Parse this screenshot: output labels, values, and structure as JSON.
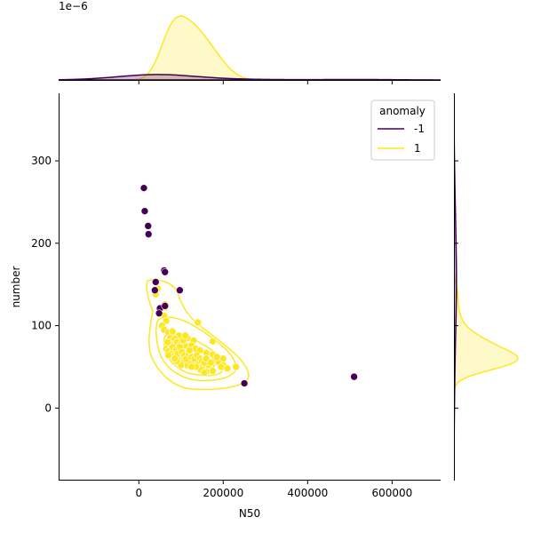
{
  "chart_data": {
    "type": "scatter",
    "title": "",
    "xlabel": "N50",
    "ylabel": "number",
    "xlim": [
      -190000,
      715000
    ],
    "ylim": [
      -88,
      382
    ],
    "x_ticks": [
      0,
      200000,
      400000,
      600000
    ],
    "x_tick_labels": [
      "0",
      "200000",
      "400000",
      "600000"
    ],
    "y_ticks": [
      0,
      100,
      200,
      300
    ],
    "y_tick_labels": [
      "0",
      "100",
      "200",
      "300"
    ],
    "top_marginal_offset_label": "1e−6",
    "legend": {
      "title": "anomaly",
      "placement": "top-right",
      "entries": [
        {
          "label": "-1",
          "color": "#440154"
        },
        {
          "label": "1",
          "color": "#fde725"
        }
      ]
    },
    "grid": false,
    "series": [
      {
        "name": "-1",
        "color": "#440154",
        "points": [
          [
            12000,
            267
          ],
          [
            14000,
            239
          ],
          [
            22000,
            221
          ],
          [
            23000,
            211
          ],
          [
            60000,
            167
          ],
          [
            62000,
            165
          ],
          [
            40000,
            153
          ],
          [
            38000,
            143
          ],
          [
            97000,
            143
          ],
          [
            50000,
            121
          ],
          [
            48000,
            115
          ],
          [
            62000,
            124
          ],
          [
            250000,
            30
          ],
          [
            510000,
            38
          ]
        ]
      },
      {
        "name": "1",
        "color": "#fde725",
        "points": [
          [
            45000,
            145
          ],
          [
            40000,
            138
          ],
          [
            62000,
            126
          ],
          [
            62000,
            122
          ],
          [
            60000,
            112
          ],
          [
            65000,
            106
          ],
          [
            140000,
            104
          ],
          [
            55000,
            100
          ],
          [
            60000,
            95
          ],
          [
            70000,
            92
          ],
          [
            80000,
            93
          ],
          [
            95000,
            88
          ],
          [
            115000,
            85
          ],
          [
            130000,
            82
          ],
          [
            175000,
            81
          ],
          [
            75000,
            85
          ],
          [
            85000,
            84
          ],
          [
            90000,
            80
          ],
          [
            100000,
            78
          ],
          [
            110000,
            76
          ],
          [
            125000,
            76
          ],
          [
            135000,
            72
          ],
          [
            145000,
            70
          ],
          [
            160000,
            67
          ],
          [
            175000,
            65
          ],
          [
            65000,
            72
          ],
          [
            70000,
            69
          ],
          [
            80000,
            67
          ],
          [
            85000,
            64
          ],
          [
            90000,
            62
          ],
          [
            95000,
            60
          ],
          [
            100000,
            57
          ],
          [
            105000,
            55
          ],
          [
            115000,
            52
          ],
          [
            120000,
            58
          ],
          [
            130000,
            54
          ],
          [
            140000,
            56
          ],
          [
            150000,
            50
          ],
          [
            165000,
            52
          ],
          [
            180000,
            58
          ],
          [
            190000,
            55
          ],
          [
            200000,
            60
          ],
          [
            200000,
            52
          ],
          [
            210000,
            48
          ],
          [
            230000,
            50
          ],
          [
            75000,
            77
          ],
          [
            80000,
            74
          ],
          [
            88000,
            70
          ],
          [
            92000,
            66
          ],
          [
            97000,
            74
          ],
          [
            102000,
            68
          ],
          [
            108000,
            64
          ],
          [
            112000,
            60
          ],
          [
            118000,
            66
          ],
          [
            125000,
            62
          ],
          [
            132000,
            60
          ],
          [
            138000,
            64
          ],
          [
            145000,
            60
          ],
          [
            150000,
            57
          ],
          [
            155000,
            55
          ],
          [
            160000,
            60
          ],
          [
            170000,
            55
          ],
          [
            185000,
            62
          ],
          [
            195000,
            50
          ],
          [
            175000,
            45
          ],
          [
            160000,
            44
          ],
          [
            145000,
            47
          ],
          [
            135000,
            50
          ],
          [
            125000,
            50
          ],
          [
            100000,
            52
          ],
          [
            90000,
            57
          ],
          [
            85000,
            60
          ],
          [
            70000,
            64
          ],
          [
            68000,
            80
          ],
          [
            120000,
            70
          ],
          [
            155000,
            43
          ],
          [
            105000,
            82
          ],
          [
            110000,
            88
          ]
        ]
      }
    ]
  }
}
